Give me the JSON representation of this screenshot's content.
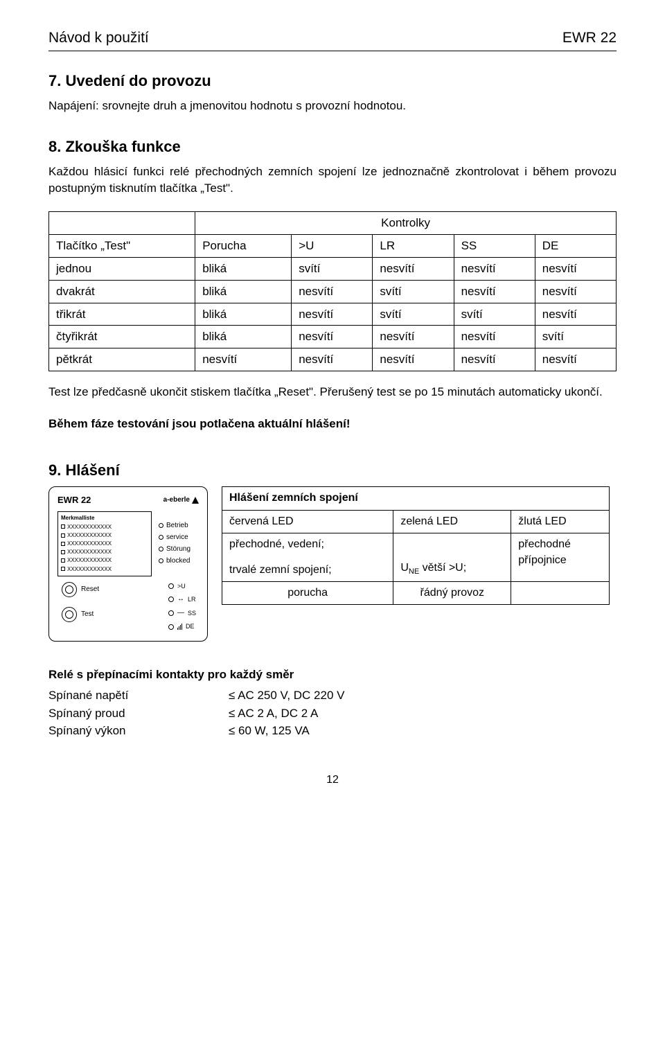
{
  "header": {
    "left": "Návod k použití",
    "right": "EWR 22"
  },
  "s7": {
    "heading": "7.   Uvedení do provozu",
    "body": "Napájení: srovnejte druh a jmenovitou hodnotu s provozní hodnotou."
  },
  "s8": {
    "heading": "8.   Zkouška funkce",
    "body": "Každou hlásicí funkci relé přechodných zemních spojení lze jednoznačně zkontrolovat i během provozu postupným tisknutím tlačítka „Test\"."
  },
  "table1": {
    "kontrolky": "Kontrolky",
    "headers": [
      "Tlačítko „Test\"",
      "Porucha",
      ">U",
      "LR",
      "SS",
      "DE"
    ],
    "rows": [
      [
        "jednou",
        "bliká",
        "svítí",
        "nesvítí",
        "nesvítí",
        "nesvítí"
      ],
      [
        "dvakrát",
        "bliká",
        "nesvítí",
        "svítí",
        "nesvítí",
        "nesvítí"
      ],
      [
        "třikrát",
        "bliká",
        "nesvítí",
        "svítí",
        "svítí",
        "nesvítí"
      ],
      [
        "čtyřikrát",
        "bliká",
        "nesvítí",
        "nesvítí",
        "nesvítí",
        "svítí"
      ],
      [
        "pětkrát",
        "nesvítí",
        "nesvítí",
        "nesvítí",
        "nesvítí",
        "nesvítí"
      ]
    ]
  },
  "post_table": "Test lze předčasně ukončit stiskem tlačítka „Reset\". Přerušený test se po 15 minutách automaticky ukončí.",
  "bold_line": "Během fáze testování jsou potlačena aktuální hlášení!",
  "s9": {
    "heading": "9.   Hlášení"
  },
  "device": {
    "title": "EWR 22",
    "brand": "a-eberle",
    "panel_title": "Merkmalliste",
    "x_line": "XXXXXXXXXXXX",
    "status": [
      "Betrieb",
      "service",
      "Störung",
      "blocked"
    ],
    "buttons": {
      "reset": "Reset",
      "test": "Test"
    },
    "leds": [
      ">U",
      "LR",
      "SS",
      "DE"
    ]
  },
  "table2": {
    "title": "Hlášení zemních spojení",
    "headers": [
      "červená LED",
      "zelená LED",
      "žlutá LED"
    ],
    "row1": {
      "c1a": "přechodné, vedení;",
      "c1b": "trvalé zemní spojení;",
      "c2_pre": "U",
      "c2_sub": "NE",
      "c2_post": " větší >U;",
      "c3a": "přechodné",
      "c3b": "přípojnice"
    },
    "row2": {
      "c1": "porucha",
      "c2": "řádný provoz"
    }
  },
  "specs": {
    "title": "Relé s přepínacími kontakty pro každý směr",
    "rows": [
      {
        "label": "Spínané napětí",
        "value": "≤ AC 250 V, DC 220 V"
      },
      {
        "label": "Spínaný proud",
        "value": "≤ AC 2 A, DC 2 A"
      },
      {
        "label": "Spínaný výkon",
        "value": "≤ 60 W, 125 VA"
      }
    ]
  },
  "page_number": "12"
}
